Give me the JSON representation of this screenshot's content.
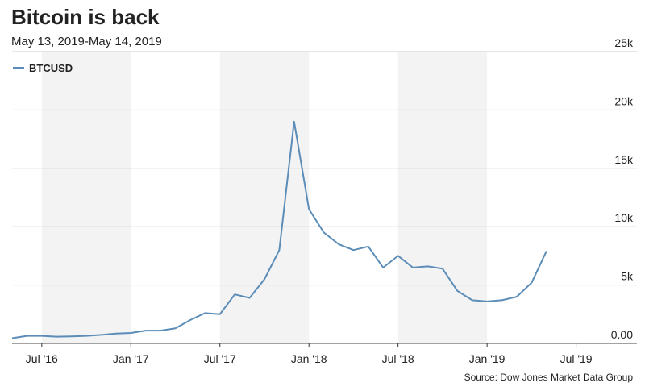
{
  "chart_data": {
    "type": "line",
    "title": "Bitcoin is back",
    "subtitle": "May 13, 2019-May 14, 2019",
    "source": "Source: Dow Jones Market Data Group",
    "x": [
      "2016-05",
      "2016-06",
      "2016-07",
      "2016-08",
      "2016-09",
      "2016-10",
      "2016-11",
      "2016-12",
      "2017-01",
      "2017-02",
      "2017-03",
      "2017-04",
      "2017-05",
      "2017-06",
      "2017-07",
      "2017-08",
      "2017-09",
      "2017-10",
      "2017-11",
      "2017-12",
      "2018-01",
      "2018-02",
      "2018-03",
      "2018-04",
      "2018-05",
      "2018-06",
      "2018-07",
      "2018-08",
      "2018-09",
      "2018-10",
      "2018-11",
      "2018-12",
      "2019-01",
      "2019-02",
      "2019-03",
      "2019-04",
      "2019-05"
    ],
    "series": [
      {
        "name": "BTCUSD",
        "color": "#5b8db8",
        "values": [
          450,
          650,
          650,
          580,
          600,
          650,
          730,
          850,
          900,
          1100,
          1100,
          1300,
          2000,
          2600,
          2500,
          4200,
          3900,
          5500,
          8000,
          19000,
          11500,
          9500,
          8500,
          8000,
          8300,
          6500,
          7500,
          6500,
          6600,
          6400,
          4500,
          3700,
          3600,
          3700,
          4000,
          5200,
          7900
        ]
      }
    ],
    "xlim": [
      "2016-05",
      "2019-08"
    ],
    "xticks": [
      {
        "value": "2016-07",
        "label": "Jul '16"
      },
      {
        "value": "2017-01",
        "label": "Jan '17"
      },
      {
        "value": "2017-07",
        "label": "Jul '17"
      },
      {
        "value": "2018-01",
        "label": "Jan '18"
      },
      {
        "value": "2018-07",
        "label": "Jul '18"
      },
      {
        "value": "2019-01",
        "label": "Jan '19"
      },
      {
        "value": "2019-07",
        "label": "Jul '19"
      }
    ],
    "ylim": [
      0,
      25000
    ],
    "yticks": [
      {
        "value": 0,
        "label": "0.00"
      },
      {
        "value": 5000,
        "label": "5k"
      },
      {
        "value": 10000,
        "label": "10k"
      },
      {
        "value": 15000,
        "label": "15k"
      },
      {
        "value": 20000,
        "label": "20k"
      },
      {
        "value": 25000,
        "label": "25k"
      }
    ],
    "grid": true,
    "legend": "top-left"
  }
}
